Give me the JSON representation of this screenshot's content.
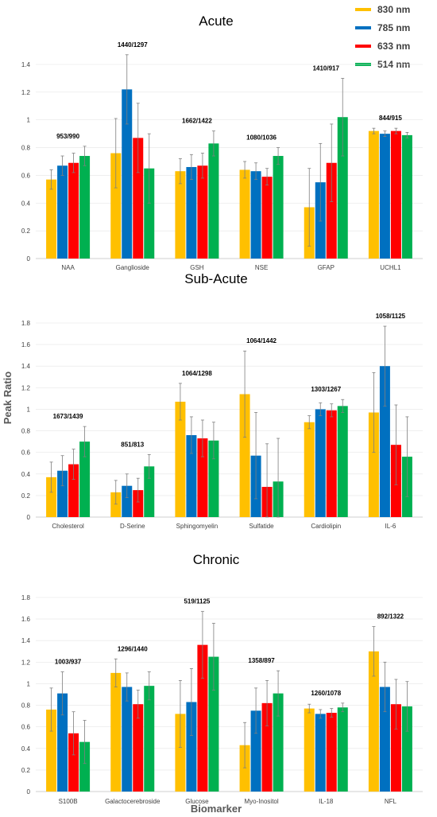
{
  "chart_data": [
    {
      "type": "bar",
      "title": "Acute",
      "categories": [
        "NAA",
        "Ganglioside",
        "GSH",
        "NSE",
        "GFAP",
        "UCHL1"
      ],
      "annotations": [
        "953/990",
        "1440/1297",
        "1662/1422",
        "1080/1036",
        "1410/917",
        "844/915"
      ],
      "ylim": [
        0,
        1.4
      ],
      "yticks": [
        "0",
        "0.2",
        "0.4",
        "0.6",
        "0.8",
        "1",
        "1.2",
        "1.4"
      ],
      "grid": true,
      "series": [
        {
          "name": "830 nm",
          "values": [
            0.57,
            0.76,
            0.63,
            0.64,
            0.37,
            0.92
          ],
          "errors": [
            0.07,
            0.25,
            0.09,
            0.06,
            0.28,
            0.02
          ]
        },
        {
          "name": "785 nm",
          "values": [
            0.67,
            1.22,
            0.66,
            0.63,
            0.55,
            0.9
          ],
          "errors": [
            0.07,
            0.25,
            0.09,
            0.06,
            0.28,
            0.02
          ]
        },
        {
          "name": "633 nm",
          "values": [
            0.69,
            0.87,
            0.67,
            0.59,
            0.69,
            0.92
          ],
          "errors": [
            0.07,
            0.25,
            0.09,
            0.06,
            0.28,
            0.02
          ]
        },
        {
          "name": "514 nm",
          "values": [
            0.74,
            0.65,
            0.83,
            0.74,
            1.02,
            0.89
          ],
          "errors": [
            0.07,
            0.25,
            0.09,
            0.06,
            0.28,
            0.02
          ]
        }
      ]
    },
    {
      "type": "bar",
      "title": "Sub-Acute",
      "categories": [
        "Cholesterol",
        "D-Serine",
        "Sphingomyelin",
        "Sulfatide",
        "Cardiolipin",
        "IL-6"
      ],
      "annotations": [
        "1673/1439",
        "851/813",
        "1064/1298",
        "1064/1442",
        "1303/1267",
        "1058/1125"
      ],
      "ylim": [
        0,
        1.8
      ],
      "yticks": [
        "0",
        "0.2",
        "0.4",
        "0.6",
        "0.8",
        "1",
        "1.2",
        "1.4",
        "1.6",
        "1.8"
      ],
      "grid": true,
      "series": [
        {
          "name": "830 nm",
          "values": [
            0.37,
            0.23,
            1.07,
            1.14,
            0.88,
            0.97
          ],
          "errors": [
            0.14,
            0.11,
            0.17,
            0.4,
            0.06,
            0.37
          ]
        },
        {
          "name": "785 nm",
          "values": [
            0.43,
            0.29,
            0.76,
            0.57,
            1.0,
            1.4
          ],
          "errors": [
            0.14,
            0.11,
            0.17,
            0.4,
            0.06,
            0.37
          ]
        },
        {
          "name": "633 nm",
          "values": [
            0.49,
            0.25,
            0.73,
            0.28,
            0.99,
            0.67
          ],
          "errors": [
            0.14,
            0.11,
            0.17,
            0.4,
            0.06,
            0.37
          ]
        },
        {
          "name": "514 nm",
          "values": [
            0.7,
            0.47,
            0.71,
            0.33,
            1.03,
            0.56
          ],
          "errors": [
            0.14,
            0.11,
            0.17,
            0.4,
            0.06,
            0.37
          ]
        }
      ]
    },
    {
      "type": "bar",
      "title": "Chronic",
      "categories": [
        "S100B",
        "Galactocerebroside",
        "Glucose",
        "Myo-Inositol",
        "IL-18",
        "NFL"
      ],
      "annotations": [
        "1003/937",
        "1296/1440",
        "519/1125",
        "1358/897",
        "1260/1078",
        "892/1322"
      ],
      "ylim": [
        0,
        1.8
      ],
      "yticks": [
        "0",
        "0.2",
        "0.4",
        "0.6",
        "0.8",
        "1",
        "1.2",
        "1.4",
        "1.6",
        "1.8"
      ],
      "grid": true,
      "series": [
        {
          "name": "830 nm",
          "values": [
            0.76,
            1.1,
            0.72,
            0.43,
            0.77,
            1.3
          ],
          "errors": [
            0.2,
            0.13,
            0.31,
            0.21,
            0.04,
            0.23
          ]
        },
        {
          "name": "785 nm",
          "values": [
            0.91,
            0.97,
            0.83,
            0.75,
            0.72,
            0.97
          ],
          "errors": [
            0.2,
            0.13,
            0.31,
            0.21,
            0.04,
            0.23
          ]
        },
        {
          "name": "633 nm",
          "values": [
            0.54,
            0.81,
            1.36,
            0.82,
            0.73,
            0.81
          ],
          "errors": [
            0.2,
            0.13,
            0.31,
            0.21,
            0.04,
            0.23
          ]
        },
        {
          "name": "514 nm",
          "values": [
            0.46,
            0.98,
            1.25,
            0.91,
            0.78,
            0.79
          ],
          "errors": [
            0.2,
            0.13,
            0.31,
            0.21,
            0.04,
            0.23
          ]
        }
      ]
    }
  ],
  "ylabel": "Peak Ratio",
  "xlabel": "Biomarker",
  "legend": {
    "placement": "top-right",
    "items": [
      {
        "label": "830 nm",
        "color": "#FFC000"
      },
      {
        "label": "785 nm",
        "color": "#0070C0"
      },
      {
        "label": "633 nm",
        "color": "#FF0000"
      },
      {
        "label": "514 nm",
        "color": "#00B050"
      }
    ]
  }
}
